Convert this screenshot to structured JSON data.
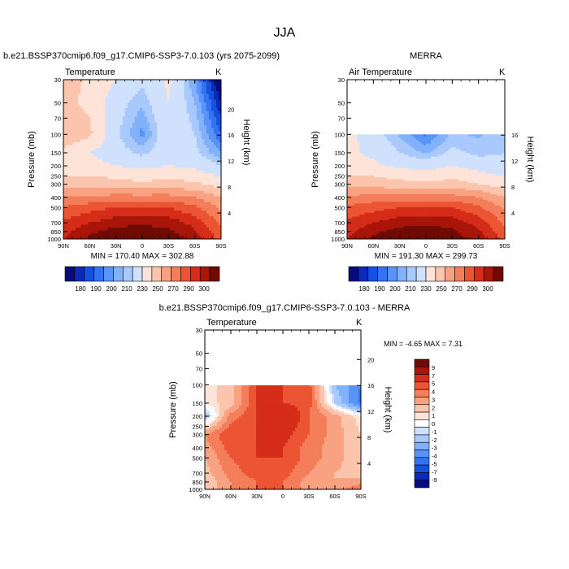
{
  "figure": {
    "title": "JJA"
  },
  "colors": {
    "palette_15": [
      "#0a0a80",
      "#0b2ab5",
      "#1650e0",
      "#3373f2",
      "#5a93f8",
      "#82b1fc",
      "#a9c9fd",
      "#d0e1fe",
      "#fde3d8",
      "#fbc5ad",
      "#f8a282",
      "#f47d5a",
      "#ec5534",
      "#d42d19",
      "#a91508",
      "#700b04"
    ],
    "diff_palette": [
      "#0a0a80",
      "#0b2ab5",
      "#1650e0",
      "#3373f2",
      "#5a93f8",
      "#82b1fc",
      "#a9c9fd",
      "#d0e1fe",
      "#ffffff",
      "#fde3d8",
      "#fbc5ad",
      "#f8a282",
      "#f47d5a",
      "#ec5534",
      "#d42d19",
      "#a91508",
      "#700b04"
    ]
  },
  "chart_data": [
    {
      "type": "heatmap",
      "title": "b.e21.BSSP370cmip6.f09_g17.CMIP6-SSP3-7.0.103 (yrs 2075-2099)",
      "subtitle": "Temperature",
      "units": "K",
      "ylabel": "Pressure (mb)",
      "y2label": "Height (km)",
      "x_ticks": [
        "90N",
        "60N",
        "30N",
        "0",
        "30S",
        "60S",
        "90S"
      ],
      "p_ticks": [
        30,
        50,
        70,
        100,
        150,
        200,
        250,
        300,
        400,
        500,
        700,
        850,
        1000
      ],
      "z_ticks": [
        4,
        8,
        12,
        16,
        20
      ],
      "stats": "MIN = 170.40   MAX = 302.88",
      "colorbar_labels": [
        "180",
        "190",
        "200",
        "210",
        "230",
        "250",
        "270",
        "290",
        "300"
      ],
      "min": 170.4,
      "max": 302.88,
      "field": {
        "lat": [
          90,
          60,
          30,
          0,
          -30,
          -60,
          -90
        ],
        "p": [
          30,
          50,
          100,
          150,
          200,
          300,
          400,
          500,
          700,
          850,
          1000
        ],
        "values": [
          [
            235,
            228,
            220,
            212,
            222,
            200,
            172
          ],
          [
            232,
            228,
            214,
            206,
            220,
            205,
            180
          ],
          [
            240,
            232,
            212,
            198,
            218,
            210,
            190
          ],
          [
            226,
            220,
            214,
            208,
            216,
            212,
            200
          ],
          [
            224,
            224,
            220,
            218,
            220,
            218,
            210
          ],
          [
            236,
            236,
            234,
            232,
            234,
            232,
            226
          ],
          [
            250,
            252,
            254,
            254,
            254,
            250,
            240
          ],
          [
            260,
            266,
            270,
            270,
            270,
            262,
            248
          ],
          [
            272,
            280,
            286,
            288,
            286,
            276,
            258
          ],
          [
            276,
            288,
            294,
            296,
            292,
            282,
            262
          ],
          [
            280,
            292,
            300,
            302,
            298,
            286,
            266
          ]
        ]
      }
    },
    {
      "type": "heatmap",
      "title": "MERRA",
      "subtitle": "Air Temperature",
      "units": "K",
      "ylabel": "Pressure (mb)",
      "y2label": "Height (km)",
      "x_ticks": [
        "90N",
        "60N",
        "30N",
        "0",
        "30S",
        "60S",
        "90S"
      ],
      "p_ticks": [
        30,
        50,
        70,
        100,
        150,
        200,
        250,
        300,
        400,
        500,
        700,
        850,
        1000
      ],
      "z_ticks": [
        4,
        8,
        12,
        16
      ],
      "stats": "MIN = 191.30   MAX = 299.73",
      "colorbar_labels": [
        "180",
        "190",
        "200",
        "210",
        "230",
        "250",
        "270",
        "290",
        "300"
      ],
      "min": 191.3,
      "max": 299.73,
      "field": {
        "lat": [
          90,
          60,
          30,
          0,
          -30,
          -60,
          -90
        ],
        "p": [
          100,
          150,
          200,
          300,
          400,
          500,
          700,
          850,
          1000
        ],
        "values": [
          [
            224,
            214,
            204,
            194,
            206,
            204,
            210
          ],
          [
            222,
            218,
            210,
            204,
            212,
            208,
            210
          ],
          [
            222,
            222,
            218,
            216,
            220,
            216,
            212
          ],
          [
            236,
            236,
            234,
            232,
            234,
            230,
            226
          ],
          [
            252,
            254,
            254,
            254,
            254,
            250,
            240
          ],
          [
            262,
            266,
            270,
            270,
            270,
            262,
            248
          ],
          [
            272,
            280,
            286,
            288,
            286,
            276,
            258
          ],
          [
            276,
            288,
            294,
            296,
            292,
            282,
            262
          ],
          [
            280,
            292,
            298,
            300,
            296,
            286,
            266
          ]
        ]
      }
    },
    {
      "type": "heatmap",
      "title": "b.e21.BSSP370cmip6.f09_g17.CMIP6-SSP3-7.0.103 - MERRA",
      "subtitle": "Temperature",
      "units": "K",
      "ylabel": "Pressure (mb)",
      "y2label": "Height (km)",
      "x_ticks": [
        "90N",
        "60N",
        "30N",
        "0",
        "30S",
        "60S",
        "90S"
      ],
      "p_ticks": [
        30,
        50,
        70,
        100,
        150,
        200,
        250,
        300,
        400,
        500,
        700,
        850,
        1000
      ],
      "z_ticks": [
        4,
        8,
        12,
        16,
        20
      ],
      "stats": "MIN =  -4.65   MAX =   7.31",
      "colorbar_labels": [
        "9",
        "7",
        "5",
        "4",
        "3",
        "2",
        "1",
        "0",
        "-1",
        "-2",
        "-3",
        "-4",
        "-5",
        "-7",
        "-9"
      ],
      "min": -4.65,
      "max": 7.31,
      "field": {
        "lat": [
          90,
          60,
          30,
          0,
          -30,
          -60,
          -90
        ],
        "p": [
          100,
          150,
          200,
          300,
          400,
          500,
          700,
          850,
          1000
        ],
        "values": [
          [
            0.5,
            1.5,
            5.0,
            5.0,
            4.5,
            -2.0,
            -4.0
          ],
          [
            0.5,
            1.5,
            5.0,
            5.0,
            4.5,
            -1.0,
            -4.5
          ],
          [
            -2.0,
            3.5,
            5.0,
            7.0,
            4.0,
            2.5,
            0.5
          ],
          [
            3.0,
            5.0,
            5.0,
            5.5,
            4.0,
            2.5,
            1.0
          ],
          [
            2.5,
            4.5,
            5.0,
            5.0,
            3.5,
            2.5,
            1.0
          ],
          [
            2.0,
            4.0,
            5.0,
            5.0,
            3.5,
            2.5,
            1.0
          ],
          [
            1.5,
            3.5,
            4.5,
            4.5,
            3.0,
            2.0,
            1.5
          ],
          [
            1.0,
            3.0,
            4.0,
            4.0,
            2.5,
            2.0,
            2.5
          ],
          [
            1.0,
            3.0,
            4.0,
            4.0,
            2.5,
            2.5,
            4.0
          ]
        ]
      }
    }
  ]
}
